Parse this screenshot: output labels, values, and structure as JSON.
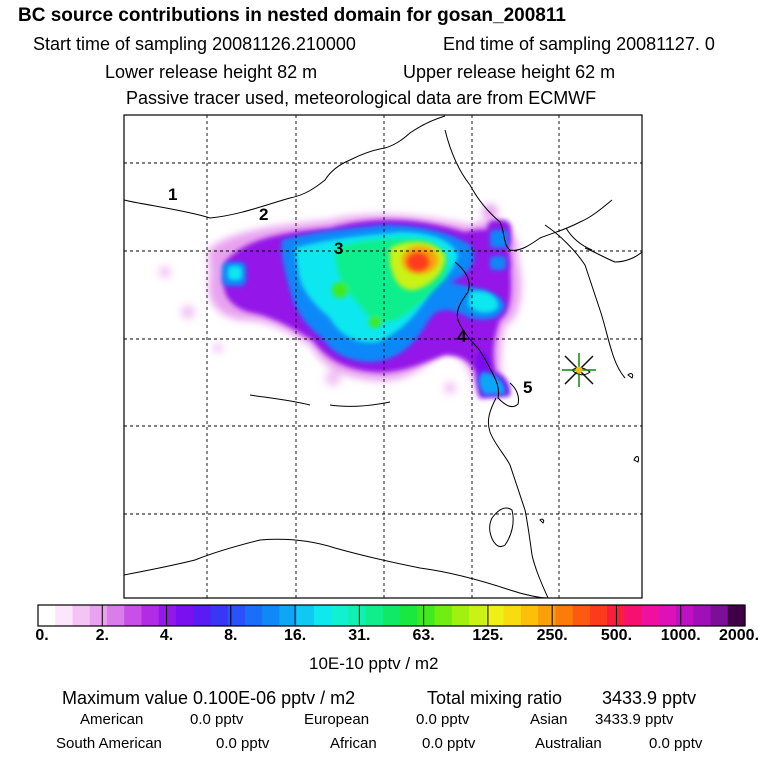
{
  "header": {
    "title": "BC  source contributions in nested domain for gosan_200811",
    "start_label": "Start time of sampling 20081126.210000",
    "end_label": "End time of sampling 20081127.     0",
    "lower_label": "Lower release height   82 m",
    "upper_label": "Upper release height   62 m",
    "tracer_label": "Passive tracer used, meteorological data are from ECMWF"
  },
  "map": {
    "region_labels": [
      "5",
      "4",
      "3",
      "2",
      "1"
    ],
    "receptor_marker": "star-marker"
  },
  "colorbar": {
    "colors": [
      "#ffffff",
      "#fbe6fb",
      "#f3c4f5",
      "#e8a2f0",
      "#d97deb",
      "#c850e8",
      "#b22ce6",
      "#9418e8",
      "#7a10f0",
      "#5a1cf4",
      "#3a36f6",
      "#2a52f8",
      "#1a6ef8",
      "#1088f8",
      "#10a6f6",
      "#10c8f4",
      "#10e8f0",
      "#12f0d2",
      "#10f0b0",
      "#10ee8c",
      "#10e868",
      "#18e840",
      "#40ea1e",
      "#70ee10",
      "#a0f010",
      "#caf214",
      "#eef018",
      "#f8dc10",
      "#fcc00a",
      "#fca00a",
      "#fc7c0a",
      "#fc5a10",
      "#fc3a1c",
      "#f81e3c",
      "#f81070",
      "#f010a0",
      "#de10b8",
      "#c010c4",
      "#a010b8",
      "#7c0e98",
      "#400048"
    ],
    "tick_labels": [
      "0.",
      "2.",
      "4.",
      "8.",
      "16.",
      "31.",
      "63.",
      "125.",
      "250.",
      "500.",
      "1000.",
      "2000."
    ],
    "unit_label": "10E-10 pptv / m2"
  },
  "stats": {
    "max_label": "Maximum value  0.100E-06 pptv / m2",
    "total_label": "Total mixing ratio",
    "total_value": "3433.9 pptv",
    "rows": [
      {
        "name": "American",
        "value": "0.0 pptv"
      },
      {
        "name": "European",
        "value": "0.0 pptv"
      },
      {
        "name": "Asian",
        "value": "3433.9 pptv"
      },
      {
        "name": "South American",
        "value": "0.0 pptv"
      },
      {
        "name": "African",
        "value": "0.0 pptv"
      },
      {
        "name": "Australian",
        "value": "0.0 pptv"
      }
    ]
  }
}
